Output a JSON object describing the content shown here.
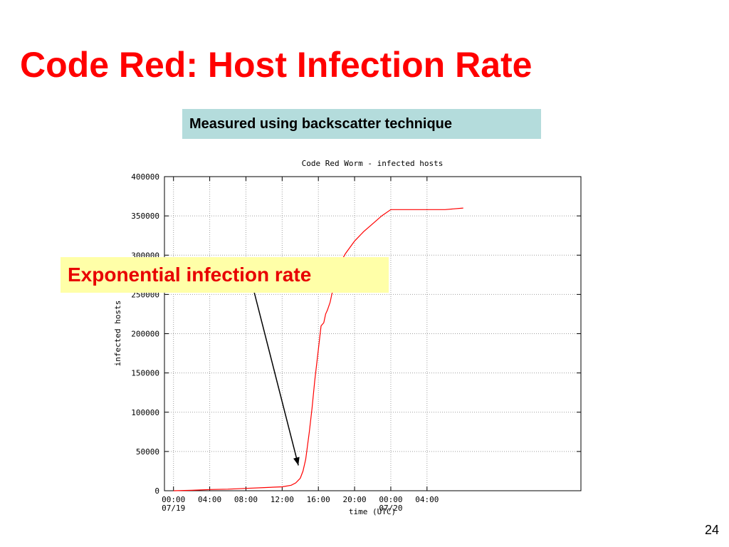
{
  "slide": {
    "title": "Code Red: Host Infection Rate",
    "note": "Measured using backscatter technique",
    "callout": "Exponential infection rate",
    "page_number": "24"
  },
  "colors": {
    "title": "#ff0000",
    "note_bg": "#b4dcdc",
    "callout_bg": "#ffffa8",
    "callout_text": "#e80000",
    "series": "#ff0000",
    "grid": "#a0a0a0",
    "arrow": "#000000"
  },
  "chart_data": {
    "type": "line",
    "title": "Code Red Worm - infected hosts",
    "xlabel": "time (UTC)",
    "ylabel": "infected hosts",
    "ylim": [
      0,
      400000
    ],
    "xlim": [
      -1.0,
      45.0
    ],
    "grid": true,
    "yticks": [
      0,
      50000,
      100000,
      150000,
      200000,
      250000,
      300000,
      350000,
      400000
    ],
    "ytick_labels": [
      "0",
      "50000",
      "100000",
      "150000",
      "200000",
      "250000",
      "300000",
      "350000",
      "400000"
    ],
    "xticks": [
      {
        "hour": 0,
        "label": "00:00",
        "sublabel": "07/19"
      },
      {
        "hour": 4,
        "label": "04:00",
        "sublabel": ""
      },
      {
        "hour": 8,
        "label": "08:00",
        "sublabel": ""
      },
      {
        "hour": 12,
        "label": "12:00",
        "sublabel": ""
      },
      {
        "hour": 16,
        "label": "16:00",
        "sublabel": ""
      },
      {
        "hour": 20,
        "label": "20:00",
        "sublabel": ""
      },
      {
        "hour": 24,
        "label": "00:00",
        "sublabel": "07/20"
      },
      {
        "hour": 28,
        "label": "04:00",
        "sublabel": ""
      }
    ],
    "series": [
      {
        "x": [
          0,
          2,
          4,
          6,
          8,
          10,
          12,
          13,
          13.5,
          14,
          14.3,
          14.6,
          15,
          15.3,
          15.6,
          16,
          16.3,
          16.6,
          16.8,
          17,
          17.3,
          17.5,
          17.8,
          18,
          18.3,
          18.5,
          19,
          20,
          21,
          22,
          23,
          24,
          26,
          28,
          30,
          32
        ],
        "y": [
          0,
          500,
          1500,
          2000,
          3000,
          4000,
          5000,
          7000,
          10000,
          16000,
          25000,
          40000,
          75000,
          105000,
          140000,
          180000,
          210000,
          214000,
          225000,
          230000,
          240000,
          251000,
          260000,
          270000,
          287000,
          292000,
          302000,
          318000,
          330000,
          340000,
          350000,
          358000,
          358000,
          358000,
          358000,
          360000
        ]
      }
    ],
    "annotation": {
      "text_ref": "slide.callout",
      "points_to_x": 14.5
    }
  }
}
